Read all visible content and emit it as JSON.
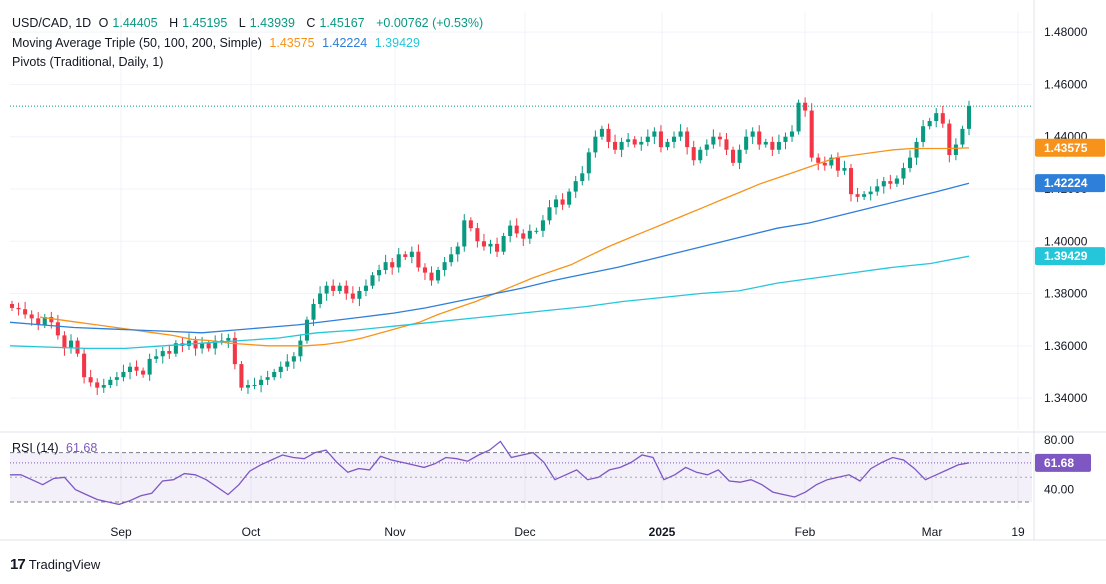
{
  "header": {
    "symbol": "USD/CAD, 1D",
    "o_label": "O",
    "open": "1.44405",
    "h_label": "H",
    "high": "1.45195",
    "l_label": "L",
    "low": "1.43939",
    "c_label": "C",
    "close": "1.45167",
    "change": "+0.00762 (+0.53%)"
  },
  "indicators": {
    "ma_label": "Moving Average Triple (50, 100, 200, Simple)",
    "ma50": "1.43575",
    "ma100": "1.42224",
    "ma200": "1.39429",
    "pivots_label": "Pivots (Traditional, Daily, 1)",
    "rsi_label": "RSI (14)",
    "rsi_value": "61.68"
  },
  "brand": {
    "name": "TradingView"
  },
  "colors": {
    "up": "#089981",
    "down": "#f23645",
    "ma50": "#f7931a",
    "ma100": "#2e7fd9",
    "ma200": "#26c6da",
    "rsi": "#7e57c2",
    "last_price": "#089981"
  },
  "chart_data": {
    "type": "candlestick",
    "price_ticks": [
      "1.48000",
      "1.46000",
      "1.44000",
      "1.42000",
      "1.40000",
      "1.38000",
      "1.36000",
      "1.34000"
    ],
    "price_ylim": [
      1.3278,
      1.4877
    ],
    "x_ticks": [
      "Sep",
      "Oct",
      "Nov",
      "Dec",
      "2025",
      "Feb",
      "Mar",
      "19"
    ],
    "rsi_ticks": [
      "80.00",
      "40.00"
    ],
    "rsi_bands": {
      "upper": 70,
      "lower": 30
    },
    "rsi_ylim": [
      23.5,
      82.6
    ],
    "last_price": 1.45167,
    "tags": [
      {
        "value": "1.43575",
        "price": 1.43575,
        "color": "#f7931a"
      },
      {
        "value": "1.42224",
        "price": 1.42224,
        "color": "#2e7fd9"
      },
      {
        "value": "1.39429",
        "price": 1.39429,
        "color": "#26c6da"
      }
    ],
    "rsi_tag": {
      "value": "61.68",
      "level": 61.68
    },
    "closes": [
      1.3745,
      1.374,
      1.372,
      1.3705,
      1.368,
      1.371,
      1.369,
      1.364,
      1.359,
      1.362,
      1.357,
      1.348,
      1.346,
      1.344,
      1.345,
      1.347,
      1.348,
      1.35,
      1.352,
      1.3505,
      1.349,
      1.355,
      1.356,
      1.358,
      1.357,
      1.361,
      1.36,
      1.362,
      1.359,
      1.361,
      1.359,
      1.362,
      1.362,
      1.363,
      1.353,
      1.344,
      1.345,
      1.345,
      1.347,
      1.348,
      1.35,
      1.352,
      1.354,
      1.356,
      1.362,
      1.37,
      1.376,
      1.38,
      1.383,
      1.381,
      1.383,
      1.38,
      1.378,
      1.381,
      1.383,
      1.387,
      1.389,
      1.392,
      1.39,
      1.395,
      1.394,
      1.396,
      1.39,
      1.388,
      1.385,
      1.389,
      1.392,
      1.395,
      1.398,
      1.408,
      1.405,
      1.4,
      1.398,
      1.399,
      1.396,
      1.402,
      1.406,
      1.403,
      1.401,
      1.404,
      1.404,
      1.408,
      1.413,
      1.416,
      1.414,
      1.419,
      1.423,
      1.426,
      1.434,
      1.44,
      1.443,
      1.438,
      1.435,
      1.438,
      1.439,
      1.437,
      1.438,
      1.44,
      1.442,
      1.436,
      1.438,
      1.44,
      1.442,
      1.436,
      1.431,
      1.435,
      1.437,
      1.44,
      1.439,
      1.435,
      1.43,
      1.435,
      1.44,
      1.442,
      1.437,
      1.438,
      1.435,
      1.438,
      1.44,
      1.442,
      1.453,
      1.45,
      1.432,
      1.43,
      1.429,
      1.432,
      1.427,
      1.428,
      1.418,
      1.417,
      1.418,
      1.419,
      1.421,
      1.423,
      1.422,
      1.424,
      1.428,
      1.432,
      1.438,
      1.444,
      1.446,
      1.449,
      1.445,
      1.433,
      1.437,
      1.443,
      1.4517
    ],
    "ma50": [
      1.371,
      1.37,
      1.369,
      1.368,
      1.367,
      1.366,
      1.365,
      1.364,
      1.3625,
      1.362,
      1.361,
      1.3605,
      1.36,
      1.36,
      1.36,
      1.3605,
      1.3615,
      1.363,
      1.365,
      1.367,
      1.369,
      1.372,
      1.3745,
      1.377,
      1.38,
      1.383,
      1.386,
      1.3885,
      1.391,
      1.3945,
      1.398,
      1.401,
      1.404,
      1.407,
      1.41,
      1.413,
      1.416,
      1.419,
      1.422,
      1.4245,
      1.427,
      1.4295,
      1.432,
      1.433,
      1.434,
      1.435,
      1.4355,
      1.4355,
      1.4355,
      1.4357
    ],
    "ma100": [
      1.369,
      1.368,
      1.367,
      1.3665,
      1.366,
      1.3655,
      1.365,
      1.366,
      1.367,
      1.368,
      1.3695,
      1.371,
      1.3725,
      1.3745,
      1.377,
      1.3795,
      1.382,
      1.385,
      1.3875,
      1.39,
      1.393,
      1.396,
      1.399,
      1.402,
      1.405,
      1.407,
      1.41,
      1.413,
      1.416,
      1.419,
      1.4222
    ],
    "ma200": [
      1.36,
      1.3595,
      1.359,
      1.359,
      1.36,
      1.361,
      1.362,
      1.363,
      1.365,
      1.366,
      1.3675,
      1.369,
      1.3705,
      1.372,
      1.3735,
      1.375,
      1.377,
      1.3785,
      1.38,
      1.381,
      1.384,
      1.386,
      1.388,
      1.39,
      1.3915,
      1.3943
    ],
    "rsi": [
      52,
      52,
      48,
      44,
      49,
      50,
      40,
      36,
      32,
      30,
      28,
      31,
      35,
      37,
      47,
      48,
      53,
      52,
      48,
      42,
      36,
      44,
      55,
      60,
      64,
      68,
      66,
      65,
      70,
      72,
      62,
      54,
      57,
      56,
      67,
      64,
      62,
      60,
      58,
      61,
      66,
      65,
      63,
      68,
      72,
      79,
      66,
      68,
      70,
      62,
      48,
      52,
      56,
      48,
      50,
      56,
      58,
      62,
      68,
      66,
      48,
      52,
      58,
      54,
      52,
      56,
      47,
      46,
      48,
      44,
      38,
      36,
      34,
      38,
      44,
      48,
      50,
      52,
      47,
      57,
      62,
      66,
      64,
      57,
      48,
      52,
      56,
      60,
      61.68
    ]
  }
}
